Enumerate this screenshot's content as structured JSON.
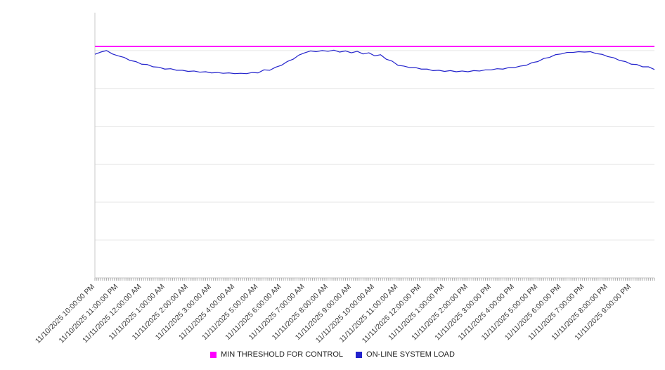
{
  "chart": {
    "legend": [
      {
        "label": "MIN THRESHOLD FOR CONTROL",
        "color": "#ff00ff"
      },
      {
        "label": "ON-LINE SYSTEM LOAD",
        "color": "#2222cc"
      }
    ]
  },
  "chart_data": {
    "type": "line",
    "title": "",
    "xlabel": "",
    "ylabel": "",
    "grid": true,
    "legend_position": "bottom-center",
    "ylim": [
      0,
      7
    ],
    "y_gridlines": [
      1,
      2,
      3,
      4,
      5,
      6
    ],
    "y_tick_labels_visible": false,
    "x_range_hours": [
      0,
      24
    ],
    "x_minor_tick_minutes": 5,
    "x_tick_labels": [
      "11/10/2025 10:00:00 PM",
      "11/10/2025 11:00:00 PM",
      "11/11/2025 12:00:00 AM",
      "11/11/2025 1:00:00 AM",
      "11/11/2025 2:00:00 AM",
      "11/11/2025 3:00:00 AM",
      "11/11/2025 4:00:00 AM",
      "11/11/2025 5:00:00 AM",
      "11/11/2025 6:00:00 AM",
      "11/11/2025 7:00:00 AM",
      "11/11/2025 8:00:00 AM",
      "11/11/2025 9:00:00 AM",
      "11/11/2025 10:00:00 AM",
      "11/11/2025 11:00:00 AM",
      "11/11/2025 12:00:00 PM",
      "11/11/2025 1:00:00 PM",
      "11/11/2025 2:00:00 PM",
      "11/11/2025 3:00:00 PM",
      "11/11/2025 4:00:00 PM",
      "11/11/2025 5:00:00 PM",
      "11/11/2025 6:00:00 PM",
      "11/11/2025 7:00:00 PM",
      "11/11/2025 8:00:00 PM",
      "11/11/2025 9:00:00 PM"
    ],
    "series": [
      {
        "name": "MIN THRESHOLD FOR CONTROL",
        "kind": "constant",
        "color": "#ff00ff",
        "value": 6.11
      },
      {
        "name": "ON-LINE SYSTEM LOAD",
        "kind": "line",
        "color": "#2222cc",
        "x_start_hour": 0,
        "x_step_hours": 0.25,
        "values": [
          5.9,
          5.96,
          6.0,
          5.91,
          5.86,
          5.82,
          5.74,
          5.71,
          5.64,
          5.63,
          5.57,
          5.56,
          5.51,
          5.52,
          5.48,
          5.48,
          5.45,
          5.46,
          5.43,
          5.44,
          5.41,
          5.42,
          5.4,
          5.41,
          5.39,
          5.4,
          5.39,
          5.42,
          5.41,
          5.49,
          5.48,
          5.56,
          5.61,
          5.71,
          5.77,
          5.88,
          5.94,
          5.99,
          5.97,
          6.0,
          5.98,
          6.01,
          5.96,
          5.99,
          5.94,
          5.98,
          5.91,
          5.94,
          5.86,
          5.89,
          5.77,
          5.72,
          5.61,
          5.59,
          5.55,
          5.55,
          5.51,
          5.51,
          5.47,
          5.48,
          5.45,
          5.47,
          5.44,
          5.46,
          5.44,
          5.47,
          5.46,
          5.49,
          5.49,
          5.52,
          5.51,
          5.55,
          5.55,
          5.59,
          5.61,
          5.68,
          5.71,
          5.79,
          5.82,
          5.89,
          5.91,
          5.95,
          5.95,
          5.97,
          5.96,
          5.97,
          5.92,
          5.9,
          5.84,
          5.81,
          5.74,
          5.71,
          5.64,
          5.63,
          5.57,
          5.57,
          5.5
        ]
      }
    ],
    "axis_colors": {
      "gridline": "#e6e6e6",
      "axis_line": "#c9c9c9",
      "tick": "#aaaaaa",
      "label": "#3a3a3a"
    }
  }
}
